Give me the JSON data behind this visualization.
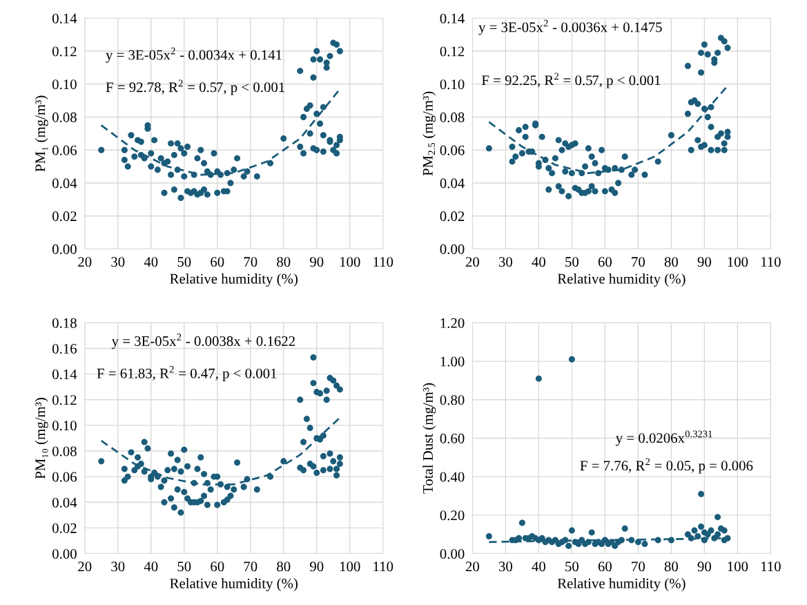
{
  "chart_data": [
    {
      "type": "scatter",
      "xlabel": "Relative humidity (%)",
      "ylabel": "PM₁ (mg/m³)",
      "xlim": [
        20,
        110
      ],
      "xticks": [
        20,
        30,
        40,
        50,
        60,
        70,
        80,
        90,
        100,
        110
      ],
      "ylim": [
        0,
        0.14
      ],
      "yticks": [
        {
          "value": 0,
          "label": "0.00"
        },
        {
          "value": 0.02,
          "label": "0.02"
        },
        {
          "value": 0.04,
          "label": "0.04"
        },
        {
          "value": 0.06,
          "label": "0.06"
        },
        {
          "value": 0.08,
          "label": "0.08"
        },
        {
          "value": 0.1,
          "label": "0.10"
        },
        {
          "value": 0.12,
          "label": "0.12"
        },
        {
          "value": 0.14,
          "label": "0.14"
        }
      ],
      "grid": true,
      "annotations": [
        "y = 3E-05x$^{2}$ - 0.0034x + 0.141",
        "F = 92.78, R$^{2}$ = 0.57, p < 0.001"
      ],
      "series": [
        {
          "color": "#1b5c7a",
          "x": [
            25,
            32,
            32,
            33,
            34,
            35,
            36,
            37,
            37,
            38,
            39,
            39,
            40,
            40,
            41,
            42,
            43,
            44,
            44,
            45,
            46,
            46,
            47,
            47,
            48,
            48,
            49,
            49,
            50,
            50,
            51,
            51,
            52,
            53,
            53,
            54,
            54,
            55,
            55,
            56,
            56,
            57,
            57,
            58,
            59,
            60,
            60,
            61,
            62,
            63,
            63,
            64,
            65,
            66,
            68,
            69,
            72,
            76,
            80,
            85,
            85,
            86,
            86,
            87,
            88,
            88,
            89,
            89,
            89,
            90,
            90,
            90,
            91,
            91,
            92,
            92,
            92,
            93,
            93,
            94,
            94,
            94,
            95,
            95,
            96,
            96,
            96,
            97,
            97,
            97
          ],
          "values": [
            0.06,
            0.06,
            0.054,
            0.05,
            0.069,
            0.056,
            0.066,
            0.065,
            0.057,
            0.055,
            0.073,
            0.075,
            0.058,
            0.05,
            0.066,
            0.048,
            0.055,
            0.034,
            0.052,
            0.053,
            0.064,
            0.045,
            0.057,
            0.036,
            0.064,
            0.048,
            0.031,
            0.061,
            0.044,
            0.058,
            0.035,
            0.062,
            0.034,
            0.035,
            0.045,
            0.033,
            0.055,
            0.034,
            0.06,
            0.036,
            0.052,
            0.047,
            0.033,
            0.045,
            0.058,
            0.034,
            0.047,
            0.045,
            0.035,
            0.035,
            0.046,
            0.04,
            0.048,
            0.055,
            0.044,
            0.047,
            0.044,
            0.052,
            0.067,
            0.062,
            0.108,
            0.08,
            0.058,
            0.085,
            0.087,
            0.07,
            0.104,
            0.061,
            0.115,
            0.12,
            0.082,
            0.06,
            0.076,
            0.115,
            0.086,
            0.069,
            0.059,
            0.11,
            0.113,
            0.117,
            0.066,
            0.065,
            0.125,
            0.06,
            0.124,
            0.058,
            0.063,
            0.12,
            0.068,
            0.066
          ]
        },
        {
          "type": "line",
          "color": "#1b5c7a",
          "line_style": "dashed",
          "marker": "none",
          "x": [
            25,
            35,
            45,
            55,
            65,
            75,
            85,
            97
          ],
          "values": [
            0.075,
            0.06,
            0.05,
            0.045,
            0.046,
            0.053,
            0.067,
            0.097
          ]
        }
      ]
    },
    {
      "type": "scatter",
      "xlabel": "Relative humidity (%)",
      "ylabel": "PM$_{2.5}$ (mg/m³)",
      "xlim": [
        20,
        110
      ],
      "xticks": [
        20,
        30,
        40,
        50,
        60,
        70,
        80,
        90,
        100,
        110
      ],
      "ylim": [
        0,
        0.14
      ],
      "yticks": [
        {
          "value": 0,
          "label": "0.00"
        },
        {
          "value": 0.02,
          "label": "0.02"
        },
        {
          "value": 0.04,
          "label": "0.04"
        },
        {
          "value": 0.06,
          "label": "0.06"
        },
        {
          "value": 0.08,
          "label": "0.08"
        },
        {
          "value": 0.1,
          "label": "0.10"
        },
        {
          "value": 0.12,
          "label": "0.12"
        },
        {
          "value": 0.14,
          "label": "0.14"
        }
      ],
      "grid": true,
      "annotations": [
        "y = 3E-05x$^{2}$ - 0.0036x + 0.1475",
        "F = 92.25, R$^{2}$ = 0.57, p < 0.001"
      ],
      "series": [
        {
          "color": "#1b5c7a",
          "x": [
            25,
            32,
            32,
            33,
            34,
            35,
            36,
            36,
            37,
            38,
            39,
            39,
            40,
            40,
            41,
            42,
            43,
            43,
            44,
            45,
            46,
            46,
            47,
            47,
            48,
            48,
            49,
            49,
            50,
            50,
            51,
            51,
            52,
            53,
            53,
            54,
            54,
            55,
            55,
            56,
            56,
            57,
            57,
            58,
            59,
            60,
            60,
            61,
            62,
            63,
            63,
            64,
            65,
            66,
            68,
            69,
            72,
            76,
            80,
            85,
            85,
            86,
            86,
            87,
            88,
            88,
            89,
            89,
            89,
            90,
            90,
            90,
            91,
            91,
            92,
            92,
            92,
            93,
            93,
            94,
            94,
            94,
            95,
            95,
            96,
            96,
            96,
            97,
            97,
            97
          ],
          "values": [
            0.061,
            0.062,
            0.053,
            0.056,
            0.072,
            0.058,
            0.074,
            0.068,
            0.059,
            0.059,
            0.075,
            0.076,
            0.05,
            0.052,
            0.068,
            0.054,
            0.049,
            0.036,
            0.046,
            0.055,
            0.066,
            0.038,
            0.06,
            0.035,
            0.064,
            0.047,
            0.032,
            0.062,
            0.046,
            0.063,
            0.037,
            0.064,
            0.036,
            0.034,
            0.046,
            0.034,
            0.05,
            0.035,
            0.061,
            0.038,
            0.056,
            0.052,
            0.035,
            0.046,
            0.06,
            0.035,
            0.049,
            0.048,
            0.036,
            0.034,
            0.049,
            0.04,
            0.048,
            0.056,
            0.045,
            0.048,
            0.045,
            0.053,
            0.069,
            0.082,
            0.111,
            0.06,
            0.089,
            0.09,
            0.088,
            0.066,
            0.107,
            0.062,
            0.119,
            0.124,
            0.085,
            0.063,
            0.08,
            0.118,
            0.086,
            0.074,
            0.06,
            0.113,
            0.115,
            0.119,
            0.068,
            0.06,
            0.128,
            0.07,
            0.126,
            0.06,
            0.064,
            0.122,
            0.071,
            0.068
          ]
        },
        {
          "type": "line",
          "color": "#1b5c7a",
          "line_style": "dashed",
          "marker": "none",
          "x": [
            25,
            35,
            45,
            55,
            65,
            75,
            85,
            97
          ],
          "values": [
            0.077,
            0.062,
            0.051,
            0.046,
            0.048,
            0.056,
            0.071,
            0.099
          ]
        }
      ]
    },
    {
      "type": "scatter",
      "xlabel": "Relative humidity (%)",
      "ylabel": "PM₁₀ (mg/m³)",
      "xlim": [
        20,
        110
      ],
      "xticks": [
        20,
        30,
        40,
        50,
        60,
        70,
        80,
        90,
        100,
        110
      ],
      "ylim": [
        0,
        0.18
      ],
      "yticks": [
        {
          "value": 0,
          "label": "0.00"
        },
        {
          "value": 0.02,
          "label": "0.02"
        },
        {
          "value": 0.04,
          "label": "0.04"
        },
        {
          "value": 0.06,
          "label": "0.06"
        },
        {
          "value": 0.08,
          "label": "0.08"
        },
        {
          "value": 0.1,
          "label": "0.10"
        },
        {
          "value": 0.12,
          "label": "0.12"
        },
        {
          "value": 0.14,
          "label": "0.14"
        },
        {
          "value": 0.16,
          "label": "0.16"
        },
        {
          "value": 0.18,
          "label": "0.18"
        }
      ],
      "grid": true,
      "annotations": [
        "y = 3E-05x$^{2}$ - 0.0038x + 0.1622",
        "F = 61.83, R$^{2}$ = 0.47, p < 0.001"
      ],
      "series": [
        {
          "color": "#1b5c7a",
          "x": [
            25,
            32,
            32,
            33,
            34,
            35,
            36,
            36,
            37,
            38,
            38,
            39,
            40,
            40,
            41,
            42,
            43,
            44,
            44,
            45,
            46,
            46,
            47,
            47,
            48,
            48,
            49,
            49,
            50,
            50,
            51,
            51,
            52,
            53,
            53,
            54,
            54,
            55,
            55,
            56,
            56,
            57,
            57,
            58,
            59,
            60,
            60,
            61,
            62,
            63,
            63,
            64,
            65,
            66,
            68,
            69,
            72,
            76,
            80,
            85,
            85,
            86,
            86,
            87,
            88,
            88,
            89,
            89,
            89,
            90,
            90,
            90,
            91,
            91,
            92,
            92,
            92,
            93,
            93,
            94,
            94,
            94,
            95,
            95,
            96,
            96,
            96,
            97,
            97,
            97
          ],
          "values": [
            0.072,
            0.066,
            0.057,
            0.06,
            0.079,
            0.065,
            0.075,
            0.068,
            0.07,
            0.087,
            0.064,
            0.082,
            0.06,
            0.058,
            0.063,
            0.06,
            0.052,
            0.04,
            0.057,
            0.065,
            0.078,
            0.043,
            0.066,
            0.036,
            0.073,
            0.05,
            0.032,
            0.064,
            0.048,
            0.081,
            0.043,
            0.068,
            0.04,
            0.04,
            0.055,
            0.04,
            0.066,
            0.041,
            0.075,
            0.045,
            0.062,
            0.055,
            0.038,
            0.05,
            0.06,
            0.038,
            0.06,
            0.054,
            0.04,
            0.042,
            0.052,
            0.045,
            0.05,
            0.071,
            0.052,
            0.058,
            0.05,
            0.06,
            0.072,
            0.067,
            0.12,
            0.087,
            0.065,
            0.105,
            0.098,
            0.07,
            0.153,
            0.068,
            0.133,
            0.126,
            0.09,
            0.063,
            0.089,
            0.125,
            0.092,
            0.076,
            0.065,
            0.127,
            0.12,
            0.137,
            0.078,
            0.066,
            0.135,
            0.072,
            0.131,
            0.061,
            0.066,
            0.128,
            0.075,
            0.07
          ]
        },
        {
          "type": "line",
          "color": "#1b5c7a",
          "line_style": "dashed",
          "marker": "none",
          "x": [
            25,
            35,
            45,
            55,
            65,
            75,
            85,
            97
          ],
          "values": [
            0.088,
            0.07,
            0.059,
            0.054,
            0.054,
            0.061,
            0.077,
            0.106
          ]
        }
      ]
    },
    {
      "type": "scatter",
      "xlabel": "Relative humidity (%)",
      "ylabel": "Total Dust (mg/m³)",
      "xlim": [
        20,
        110
      ],
      "xticks": [
        20,
        30,
        40,
        50,
        60,
        70,
        80,
        90,
        100,
        110
      ],
      "ylim": [
        0,
        1.2
      ],
      "yticks": [
        {
          "value": 0,
          "label": "0.00"
        },
        {
          "value": 0.2,
          "label": "0.20"
        },
        {
          "value": 0.4,
          "label": "0.40"
        },
        {
          "value": 0.6,
          "label": "0.60"
        },
        {
          "value": 0.8,
          "label": "0.80"
        },
        {
          "value": 1.0,
          "label": "1.00"
        },
        {
          "value": 1.2,
          "label": "1.20"
        }
      ],
      "grid": true,
      "annotations": [
        "y = 0.0206x$^{0.3231}$",
        "F = 7.76, R$^{2}$ = 0.05, p = 0.006"
      ],
      "series": [
        {
          "color": "#1b5c7a",
          "x": [
            25,
            32,
            33,
            34,
            35,
            36,
            37,
            38,
            39,
            40,
            40,
            41,
            42,
            43,
            44,
            45,
            46,
            47,
            48,
            49,
            50,
            50,
            51,
            52,
            53,
            54,
            55,
            56,
            57,
            58,
            59,
            60,
            61,
            62,
            63,
            64,
            65,
            66,
            68,
            70,
            72,
            76,
            80,
            85,
            86,
            87,
            88,
            89,
            89,
            90,
            90,
            91,
            92,
            93,
            94,
            94,
            95,
            96,
            96,
            97
          ],
          "values": [
            0.09,
            0.07,
            0.07,
            0.08,
            0.16,
            0.08,
            0.08,
            0.09,
            0.08,
            0.91,
            0.07,
            0.08,
            0.06,
            0.07,
            0.06,
            0.07,
            0.05,
            0.06,
            0.07,
            0.04,
            1.01,
            0.12,
            0.06,
            0.05,
            0.07,
            0.05,
            0.06,
            0.11,
            0.05,
            0.06,
            0.05,
            0.07,
            0.05,
            0.06,
            0.04,
            0.06,
            0.07,
            0.13,
            0.07,
            0.06,
            0.05,
            0.07,
            0.07,
            0.1,
            0.08,
            0.12,
            0.09,
            0.31,
            0.14,
            0.11,
            0.07,
            0.1,
            0.12,
            0.08,
            0.19,
            0.1,
            0.13,
            0.07,
            0.12,
            0.08
          ]
        },
        {
          "type": "line",
          "color": "#1b5c7a",
          "line_style": "dashed",
          "marker": "none",
          "x": [
            25,
            40,
            60,
            80,
            97
          ],
          "values": [
            0.06,
            0.065,
            0.07,
            0.075,
            0.08
          ]
        }
      ]
    }
  ]
}
